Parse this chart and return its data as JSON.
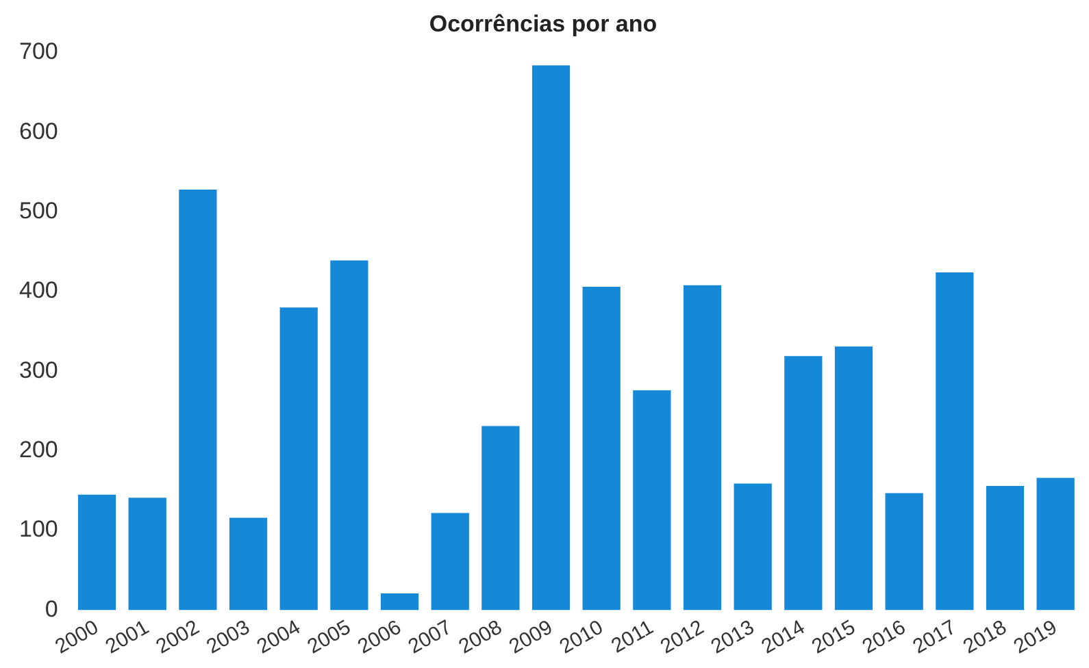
{
  "chart_data": {
    "type": "bar",
    "title": "Ocorrências por ano",
    "categories": [
      "2000",
      "2001",
      "2002",
      "2003",
      "2004",
      "2005",
      "2006",
      "2007",
      "2008",
      "2009",
      "2010",
      "2011",
      "2012",
      "2013",
      "2014",
      "2015",
      "2016",
      "2017",
      "2018",
      "2019"
    ],
    "values": [
      145,
      141,
      528,
      116,
      380,
      439,
      21,
      122,
      231,
      684,
      406,
      276,
      408,
      159,
      319,
      331,
      147,
      424,
      156,
      166
    ],
    "color": "#1688d8",
    "ylim": [
      0,
      700
    ],
    "yticks": [
      0,
      100,
      200,
      300,
      400,
      500,
      600,
      700
    ],
    "grid": false
  }
}
